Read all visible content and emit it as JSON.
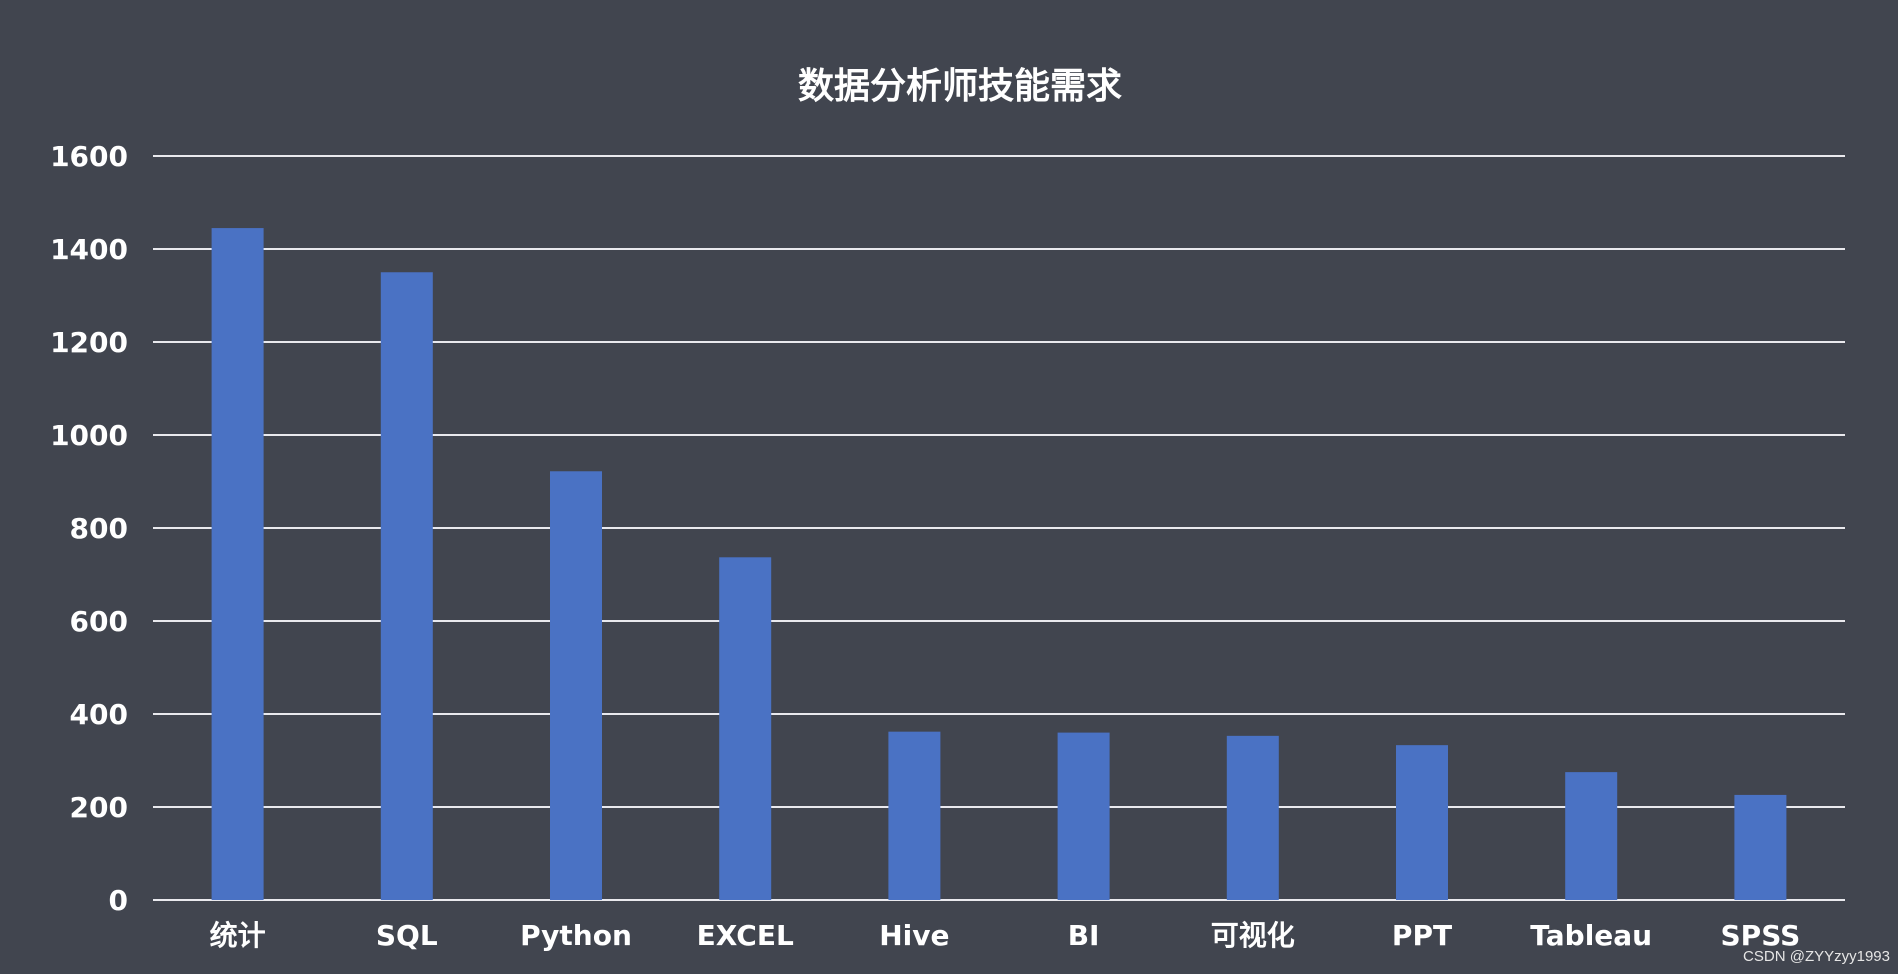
{
  "chart_data": {
    "type": "bar",
    "title": "数据分析师技能需求",
    "categories": [
      "统计",
      "SQL",
      "Python",
      "EXCEL",
      "Hive",
      "BI",
      "可视化",
      "PPT",
      "Tableau",
      "SPSS"
    ],
    "values": [
      1445,
      1350,
      922,
      737,
      362,
      360,
      353,
      333,
      275,
      226
    ],
    "xlabel": "",
    "ylabel": "",
    "ylim": [
      0,
      1600
    ],
    "yticks": [
      0,
      200,
      400,
      600,
      800,
      1000,
      1200,
      1400,
      1600
    ],
    "grid": true,
    "bar_color": "#4a72c4"
  },
  "colors": {
    "background": "#41454f",
    "text": "#ffffff",
    "gridline": "#e9e9ee"
  },
  "watermark": "CSDN @ZYYzyy1993"
}
